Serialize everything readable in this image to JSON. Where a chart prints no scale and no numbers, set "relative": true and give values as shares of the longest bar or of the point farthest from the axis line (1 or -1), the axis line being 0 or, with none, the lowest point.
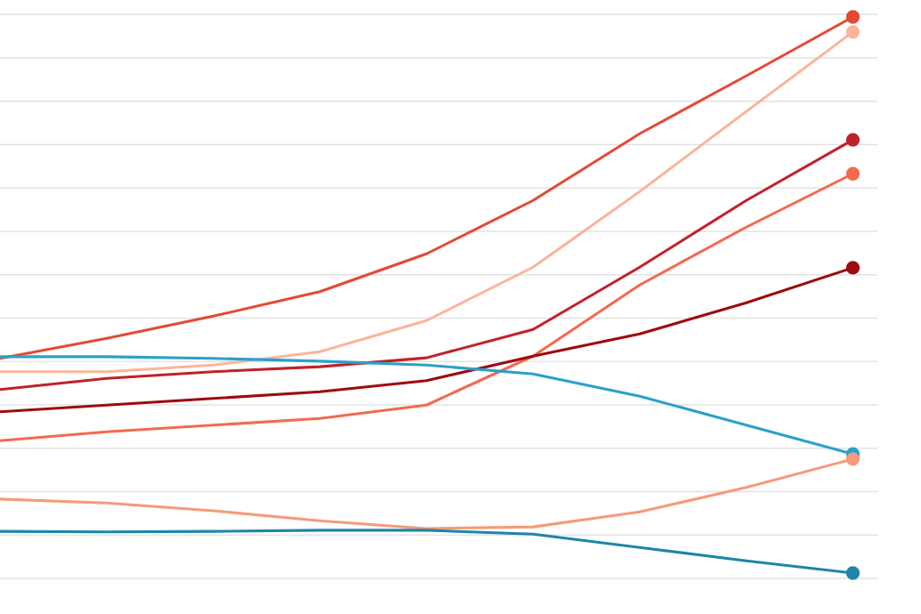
{
  "chart_data": {
    "type": "line",
    "relative": true,
    "grid": "y",
    "line_style": "solid",
    "categories": [
      null,
      null,
      null,
      null,
      null,
      null,
      null,
      null,
      null
    ],
    "series": [
      {
        "color": "#e34a33",
        "values": [
          0.386,
          0.422,
          0.462,
          0.506,
          0.574,
          0.67,
          0.79,
          0.894,
          1
        ]
      },
      {
        "color": "#fcb499",
        "values": [
          0.362,
          0.362,
          0.374,
          0.398,
          0.454,
          0.55,
          0.686,
          0.83,
          0.973
        ]
      },
      {
        "color": "#c0222a",
        "values": [
          0.33,
          0.35,
          0.362,
          0.371,
          0.387,
          0.438,
          0.55,
          0.67,
          0.779
        ]
      },
      {
        "color": "#f26a50",
        "values": [
          0.238,
          0.254,
          0.266,
          0.278,
          0.302,
          0.39,
          0.518,
          0.622,
          0.718
        ]
      },
      {
        "color": "#9e0a0f",
        "values": [
          0.29,
          0.302,
          0.314,
          0.326,
          0.346,
          0.39,
          0.43,
          0.486,
          0.549
        ]
      },
      {
        "color": "#2aa1c9",
        "values": [
          0.389,
          0.389,
          0.386,
          0.381,
          0.374,
          0.358,
          0.318,
          0.266,
          0.214
        ]
      },
      {
        "color": "#f59a7a",
        "values": [
          0.133,
          0.126,
          0.112,
          0.094,
          0.08,
          0.083,
          0.11,
          0.154,
          0.205
        ]
      },
      {
        "color": "#1f85a8",
        "values": [
          0.075,
          0.074,
          0.075,
          0.077,
          0.077,
          0.07,
          0.046,
          0.022,
          0
        ]
      }
    ]
  }
}
